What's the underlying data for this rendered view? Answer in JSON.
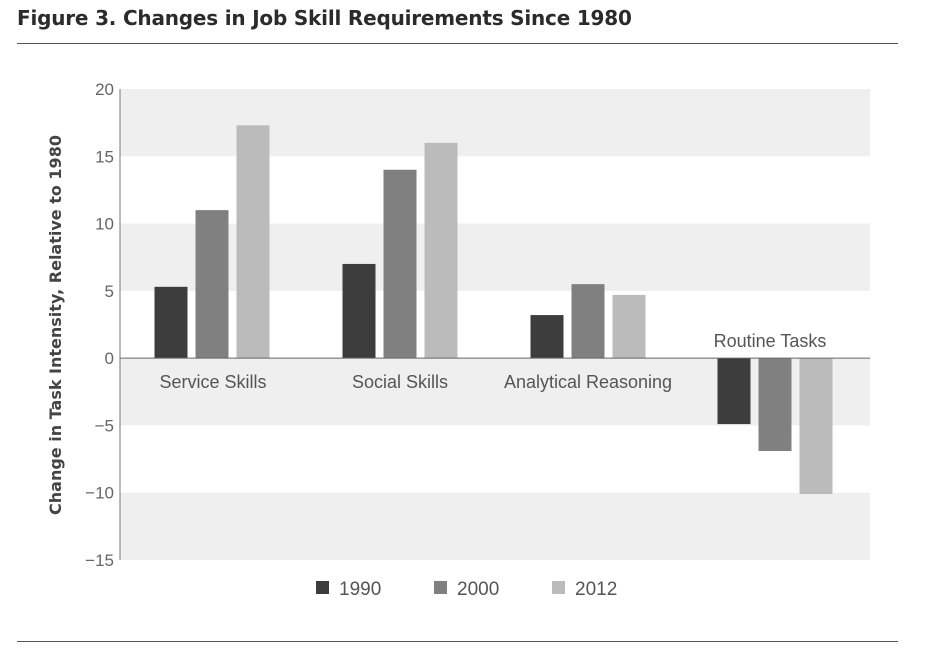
{
  "figure": {
    "title": "Figure 3. Changes in Job Skill Requirements Since 1980"
  },
  "chart_data": {
    "type": "bar",
    "title": "Figure 3. Changes in Job Skill Requirements Since 1980",
    "xlabel": "",
    "ylabel": "Change in Task Intensity, Relative to 1980",
    "ylim": [
      -15,
      20
    ],
    "yticks": [
      "20",
      "15",
      "10",
      "5",
      "0",
      "−5",
      "−10",
      "−15"
    ],
    "grid": "alternating horizontal bands",
    "legend_position": "bottom",
    "categories": [
      "Service Skills",
      "Social Skills",
      "Analytical Reasoning",
      "Routine Tasks"
    ],
    "series": [
      {
        "name": "1990",
        "color": "#3d3d3d",
        "values": [
          5.3,
          7.0,
          3.2,
          -4.9
        ]
      },
      {
        "name": "2000",
        "color": "#808080",
        "values": [
          11.0,
          14.0,
          5.5,
          -6.9
        ]
      },
      {
        "name": "2012",
        "color": "#bbbbbb",
        "values": [
          17.3,
          16.0,
          4.7,
          -10.1
        ]
      }
    ]
  }
}
